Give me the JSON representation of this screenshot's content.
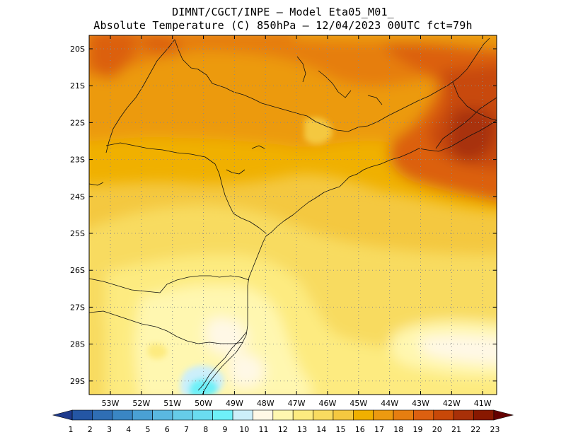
{
  "title": {
    "line1": "DIMNT/CGCT/INPE –  Model Eta05_M01_",
    "line2": "Absolute Temperature (C) 850hPa –  12/04/2023 00UTC fct=79h"
  },
  "axes": {
    "lat_labels": [
      "20S",
      "21S",
      "22S",
      "23S",
      "24S",
      "25S",
      "26S",
      "27S",
      "28S",
      "29S"
    ],
    "lon_labels": [
      "53W",
      "52W",
      "51W",
      "50W",
      "49W",
      "48W",
      "47W",
      "46W",
      "45W",
      "44W",
      "43W",
      "42W",
      "41W"
    ]
  },
  "colorbar": {
    "labels": [
      "1",
      "2",
      "3",
      "4",
      "5",
      "6",
      "7",
      "8",
      "9",
      "10",
      "11",
      "12",
      "13",
      "14",
      "15",
      "16",
      "17",
      "18",
      "19",
      "20",
      "21",
      "22",
      "23"
    ],
    "colors": [
      "#1e3a8c",
      "#2456a4",
      "#2f6eb4",
      "#3a86c4",
      "#4aa0d4",
      "#5ab8e0",
      "#66cce8",
      "#6adcf0",
      "#6ef0f8",
      "#cceffa",
      "#fff8e6",
      "#fff7b0",
      "#fdeb80",
      "#f8db60",
      "#f4c840",
      "#f0b000",
      "#ec9a10",
      "#e67e10",
      "#dc6010",
      "#c84808",
      "#a83008",
      "#881800",
      "#640000"
    ]
  }
}
